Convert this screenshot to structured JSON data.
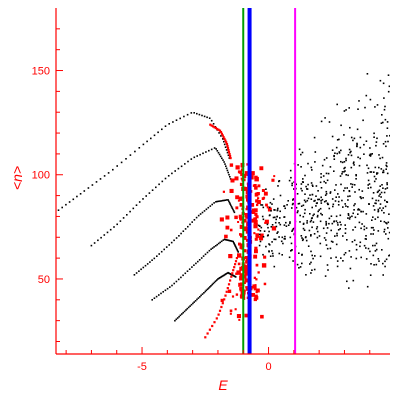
{
  "chart_data": {
    "type": "scatter",
    "title": "",
    "xlabel": "E",
    "ylabel": "<n>",
    "xlim": [
      -8.4,
      4.8
    ],
    "ylim": [
      14,
      180
    ],
    "grid": false,
    "legend": "none",
    "x_ticks": [
      -5,
      0
    ],
    "x_tick_labels": [
      "-5",
      "0"
    ],
    "y_ticks": [
      50,
      100,
      150
    ],
    "y_tick_labels": [
      "50",
      "100",
      "150"
    ],
    "colors": {
      "axis": "#ff0000",
      "black_points": "#000000",
      "red_points": "#ff0000",
      "green_line": "#00a000",
      "blue_line": "#0000ff",
      "magenta_line": "#ff00ff"
    },
    "vertical_lines": [
      {
        "color": "#00a000",
        "x": -1.0
      },
      {
        "color": "#0000ff",
        "x": -0.75
      },
      {
        "color": "#ff00ff",
        "x": 1.05
      }
    ],
    "series": [
      {
        "color": "#000000",
        "kind": "band",
        "points": [
          [
            -8.3,
            83
          ],
          [
            -7.3,
            92
          ],
          [
            -6.2,
            102
          ],
          [
            -5.0,
            114
          ],
          [
            -4.0,
            124
          ],
          [
            -3.0,
            130
          ],
          [
            -2.3,
            127
          ],
          [
            -1.8,
            117
          ],
          [
            -1.55,
            108
          ]
        ]
      },
      {
        "color": "#000000",
        "kind": "band",
        "points": [
          [
            -7.0,
            66
          ],
          [
            -6.0,
            76
          ],
          [
            -5.0,
            88
          ],
          [
            -4.0,
            99
          ],
          [
            -3.0,
            108
          ],
          [
            -2.1,
            113
          ],
          [
            -1.75,
            106
          ],
          [
            -1.5,
            98
          ]
        ]
      },
      {
        "color": "#000000",
        "kind": "band",
        "points": [
          [
            -5.3,
            52
          ],
          [
            -4.5,
            60
          ],
          [
            -3.6,
            70
          ],
          [
            -2.8,
            80
          ],
          [
            -2.1,
            87
          ],
          [
            -1.6,
            88
          ],
          [
            -1.35,
            82
          ]
        ]
      },
      {
        "color": "#000000",
        "kind": "band",
        "points": [
          [
            -4.6,
            40
          ],
          [
            -3.8,
            47
          ],
          [
            -3.0,
            56
          ],
          [
            -2.3,
            64
          ],
          [
            -1.75,
            69
          ],
          [
            -1.4,
            68
          ],
          [
            -1.2,
            63
          ]
        ]
      },
      {
        "color": "#000000",
        "kind": "band",
        "points": [
          [
            -3.7,
            30
          ],
          [
            -3.1,
            37
          ],
          [
            -2.5,
            44
          ],
          [
            -2.0,
            50
          ],
          [
            -1.6,
            53
          ],
          [
            -1.3,
            51
          ]
        ]
      },
      {
        "color": "#ff0000",
        "kind": "band",
        "points": [
          [
            -2.5,
            22
          ],
          [
            -2.0,
            32
          ],
          [
            -1.7,
            42
          ],
          [
            -1.45,
            52
          ],
          [
            -1.25,
            60
          ]
        ]
      },
      {
        "color": "#ff0000",
        "kind": "band",
        "points": [
          [
            -2.3,
            124
          ],
          [
            -1.9,
            121
          ],
          [
            -1.65,
            115
          ],
          [
            -1.5,
            108
          ]
        ]
      },
      {
        "color": "#ff0000",
        "kind": "cloud",
        "region": {
          "x": [
            -1.9,
            0.3
          ],
          "y": [
            15,
            105
          ]
        },
        "dense_columns": [
          -1.05,
          -0.8,
          -0.5
        ]
      },
      {
        "color": "#000000",
        "kind": "cloud",
        "region": {
          "x": [
            -0.4,
            4.8
          ],
          "y": [
            45,
            180
          ]
        },
        "center": [
          2.0,
          88
        ]
      }
    ]
  }
}
